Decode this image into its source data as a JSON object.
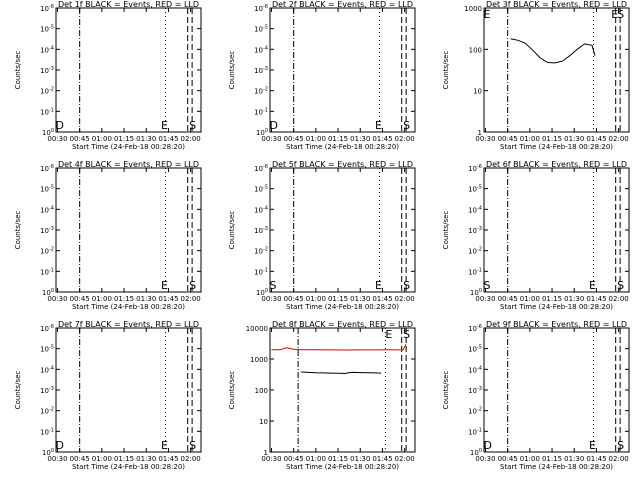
{
  "chart_data": [
    {
      "type": "line",
      "title": "Det 1f BLACK = Events, RED = LLD",
      "xlabel": "Start Time (24-Feb-18 00:28:20)",
      "ylabel": "Counts/sec",
      "x_ticks": [
        "00:30",
        "00:45",
        "01:00",
        "01:15",
        "01:30",
        "01:45",
        "02:00"
      ],
      "y_scale": "log",
      "y_ticks": [
        "10^0",
        "10^-1",
        "10^-2",
        "10^-3",
        "10^-4",
        "10^-5",
        "10^-6"
      ],
      "marker_labels": [
        "D",
        "E",
        "S"
      ],
      "series": []
    },
    {
      "type": "line",
      "title": "Det 2f BLACK = Events, RED = LLD",
      "xlabel": "Start Time (24-Feb-18 00:28:20)",
      "ylabel": "Counts/sec",
      "x_ticks": [
        "00:30",
        "00:45",
        "01:00",
        "01:15",
        "01:30",
        "01:45",
        "02:00"
      ],
      "y_scale": "log",
      "y_ticks": [
        "10^0",
        "10^-1",
        "10^-2",
        "10^-3",
        "10^-4",
        "10^-5",
        "10^-6"
      ],
      "marker_labels": [
        "D",
        "E",
        "S"
      ],
      "series": []
    },
    {
      "type": "line",
      "title": "Det 3f BLACK = Events, RED = LLD",
      "xlabel": "Start Time (24-Feb-18 00:28:20)",
      "ylabel": "Counts/sec",
      "x_ticks": [
        "00:30",
        "00:45",
        "01:00",
        "01:15",
        "01:30",
        "01:45",
        "02:00"
      ],
      "y_scale": "log",
      "y_ticks": [
        "1",
        "10",
        "100",
        "1000"
      ],
      "marker_labels": [
        "E",
        "E",
        "S"
      ],
      "series": [
        {
          "color": "#000000",
          "x": [
            "00:47",
            "00:52",
            "00:57",
            "01:02",
            "01:07",
            "01:12",
            "01:17",
            "01:22",
            "01:27",
            "01:32",
            "01:37",
            "01:42",
            "01:44"
          ],
          "y": [
            180,
            165,
            140,
            95,
            62,
            48,
            47,
            52,
            70,
            100,
            135,
            125,
            70
          ]
        }
      ]
    },
    {
      "type": "line",
      "title": "Det 4f BLACK = Events, RED = LLD",
      "xlabel": "Start Time (24-Feb-18 00:28:20)",
      "ylabel": "Counts/sec",
      "x_ticks": [
        "00:30",
        "00:45",
        "01:00",
        "01:15",
        "01:30",
        "01:45",
        "02:00"
      ],
      "y_scale": "log",
      "y_ticks": [
        "10^0",
        "10^-1",
        "10^-2",
        "10^-3",
        "10^-4",
        "10^-5",
        "10^-6"
      ],
      "marker_labels": [
        "E",
        "S"
      ],
      "series": []
    },
    {
      "type": "line",
      "title": "Det 5f BLACK = Events, RED = LLD",
      "xlabel": "Start Time (24-Feb-18 00:28:20)",
      "ylabel": "Counts/sec",
      "x_ticks": [
        "00:30",
        "00:45",
        "01:00",
        "01:15",
        "01:30",
        "01:45",
        "02:00"
      ],
      "y_scale": "log",
      "y_ticks": [
        "10^0",
        "10^-1",
        "10^-2",
        "10^-3",
        "10^-4",
        "10^-5",
        "10^-6"
      ],
      "marker_labels": [
        "S",
        "E",
        "S"
      ],
      "series": []
    },
    {
      "type": "line",
      "title": "Det 6f BLACK = Events, RED = LLD",
      "xlabel": "Start Time (24-Feb-18 00:28:20)",
      "ylabel": "Counts/sec",
      "x_ticks": [
        "00:30",
        "00:45",
        "01:00",
        "01:15",
        "01:30",
        "01:45",
        "02:00"
      ],
      "y_scale": "log",
      "y_ticks": [
        "10^0",
        "10^-1",
        "10^-2",
        "10^-3",
        "10^-4",
        "10^-5",
        "10^-6"
      ],
      "marker_labels": [
        "S",
        "E",
        "S"
      ],
      "series": []
    },
    {
      "type": "line",
      "title": "Det 7f BLACK = Events, RED = LLD",
      "xlabel": "Start Time (24-Feb-18 00:28:20)",
      "ylabel": "Counts/sec",
      "x_ticks": [
        "00:30",
        "00:45",
        "01:00",
        "01:15",
        "01:30",
        "01:45",
        "02:00"
      ],
      "y_scale": "log",
      "y_ticks": [
        "10^0",
        "10^-1",
        "10^-2",
        "10^-3",
        "10^-4",
        "10^-5",
        "10^-6"
      ],
      "marker_labels": [
        "D",
        "E",
        "S"
      ],
      "series": []
    },
    {
      "type": "line",
      "title": "Det 8f BLACK = Events, RED = LLD",
      "xlabel": "Start Time (24-Feb-18 00:28:20)",
      "ylabel": "Counts/sec",
      "x_ticks": [
        "00:30",
        "00:45",
        "01:00",
        "01:15",
        "01:30",
        "01:45",
        "02:00"
      ],
      "y_scale": "log",
      "y_ticks": [
        "1",
        "10",
        "100",
        "1000",
        "10000"
      ],
      "marker_labels": [
        "E",
        "S"
      ],
      "series": [
        {
          "color": "#000000",
          "x": [
            "00:50",
            "00:55",
            "01:00",
            "01:05",
            "01:10",
            "01:15",
            "01:20",
            "01:22",
            "01:25",
            "01:30",
            "01:35",
            "01:40",
            "01:44"
          ],
          "y": [
            380,
            370,
            360,
            355,
            350,
            345,
            340,
            360,
            370,
            365,
            360,
            355,
            350
          ]
        },
        {
          "color": "#dd0000",
          "x": [
            "00:30",
            "00:36",
            "00:40",
            "00:45",
            "00:50",
            "01:00",
            "01:10",
            "01:20",
            "01:30",
            "01:40",
            "01:50",
            "01:55",
            "01:59",
            "02:01"
          ],
          "y": [
            2000,
            2000,
            2300,
            2050,
            2000,
            1980,
            1960,
            1950,
            1960,
            1970,
            1980,
            1970,
            2000,
            3000
          ]
        }
      ]
    },
    {
      "type": "line",
      "title": "Det 9f BLACK = Events, RED = LLD",
      "xlabel": "Start Time (24-Feb-18 00:28:20)",
      "ylabel": "Counts/sec",
      "x_ticks": [
        "00:30",
        "00:45",
        "01:00",
        "01:15",
        "01:30",
        "01:45",
        "02:00"
      ],
      "y_scale": "log",
      "y_ticks": [
        "10^0",
        "10^-1",
        "10^-2",
        "10^-3",
        "10^-4",
        "10^-5",
        "10^-6"
      ],
      "marker_labels": [
        "D",
        "E",
        "S"
      ],
      "series": []
    }
  ]
}
